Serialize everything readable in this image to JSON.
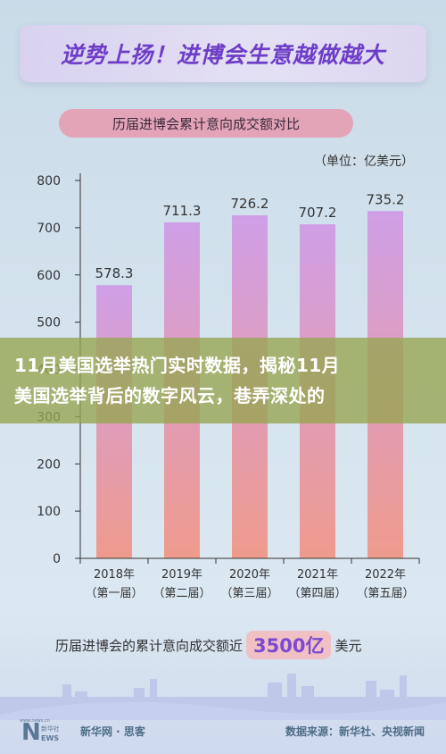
{
  "banner": {
    "headline": "逆势上扬！进博会生意越做越大"
  },
  "chart_data": {
    "type": "bar",
    "title": "历届进博会累计意向成交额对比",
    "unit": "（单位：亿美元）",
    "categories": [
      "2018年\n（第一届）",
      "2019年\n（第二届）",
      "2020年\n（第三届）",
      "2021年\n（第四届）",
      "2022年\n（第五届）"
    ],
    "category_years": [
      "2018年",
      "2019年",
      "2020年",
      "2021年",
      "2022年"
    ],
    "category_sessions": [
      "（第一届）",
      "（第二届）",
      "（第三届）",
      "（第四届）",
      "（第五届）"
    ],
    "values": [
      578.3,
      711.3,
      726.2,
      707.2,
      735.2
    ],
    "value_labels": [
      "578.3",
      "711.3",
      "726.2",
      "707.2",
      "735.2"
    ],
    "ylim": [
      0,
      800
    ],
    "yticks": [
      0,
      100,
      200,
      300,
      400,
      500,
      600,
      700,
      800
    ],
    "grid": false,
    "colors": {
      "bar_top": "#cf9fe6",
      "bar_bottom": "#ef9b8d"
    }
  },
  "overlay": {
    "line1": "11月美国选举热门实时数据，揭秘11月",
    "line2": "美国选举背后的数字风云，巷弄深处的"
  },
  "note": {
    "prefix": "历届进博会的累计意向成交额近",
    "highlight": "3500亿",
    "suffix": "美元"
  },
  "footer": {
    "logo_caption": "www.news.cn",
    "logo_text": "新华社",
    "brand": "新华网 · 思客",
    "source": "数据来源：新华社、央视新闻"
  }
}
